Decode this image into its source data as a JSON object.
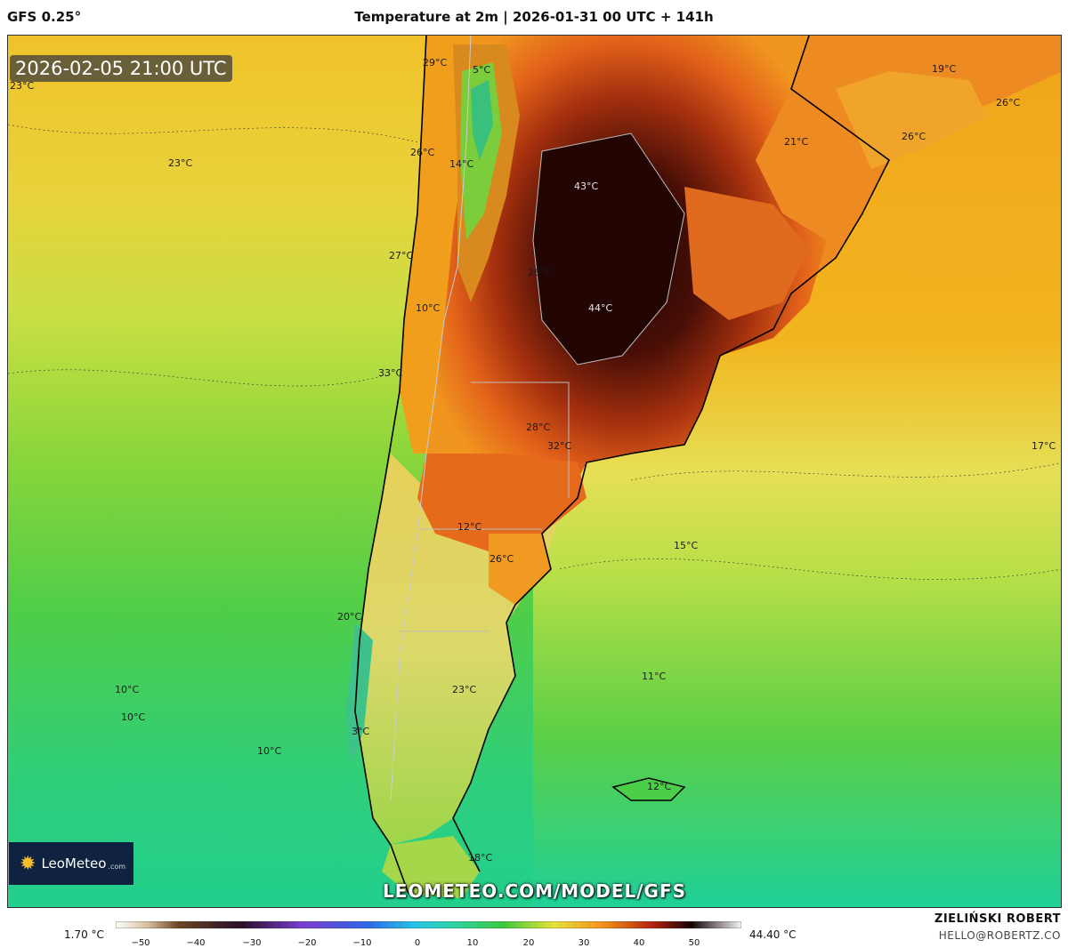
{
  "header": {
    "model": "GFS 0.25°",
    "title": "Temperature at 2m | 2026-01-31 00 UTC + 141h"
  },
  "map": {
    "valid_time": "2026-02-05 21:00 UTC",
    "watermark": "LEOMETEO.COM/MODEL/GFS",
    "logo": {
      "name": "LeoMeteo",
      "suffix": ".com"
    },
    "temperature_labels": [
      {
        "text": "23°C"
      },
      {
        "text": "29°C"
      },
      {
        "text": "5°C"
      },
      {
        "text": "23°C"
      },
      {
        "text": "26°C"
      },
      {
        "text": "14°C"
      },
      {
        "text": "43°C"
      },
      {
        "text": "21°C"
      },
      {
        "text": "26°C"
      },
      {
        "text": "26°C"
      },
      {
        "text": "19°C"
      },
      {
        "text": "27°C"
      },
      {
        "text": "26°C"
      },
      {
        "text": "10°C"
      },
      {
        "text": "44°C"
      },
      {
        "text": "33°C"
      },
      {
        "text": "28°C"
      },
      {
        "text": "32°C"
      },
      {
        "text": "17°C"
      },
      {
        "text": "12°C"
      },
      {
        "text": "26°C"
      },
      {
        "text": "15°C"
      },
      {
        "text": "20°C"
      },
      {
        "text": "11°C"
      },
      {
        "text": "10°C"
      },
      {
        "text": "10°C"
      },
      {
        "text": "23°C"
      },
      {
        "text": "3°C"
      },
      {
        "text": "10°C"
      },
      {
        "text": "12°C"
      },
      {
        "text": "18°C"
      }
    ]
  },
  "colorbar": {
    "min_label": "1.70 °C",
    "max_label": "44.40 °C",
    "ticks": [
      "−50",
      "−40",
      "−30",
      "−20",
      "−10",
      "0",
      "10",
      "20",
      "30",
      "40",
      "50"
    ]
  },
  "credits": {
    "author": "ZIELIŃSKI ROBERT",
    "email": "HELLO@ROBERTZ.CO"
  },
  "colors": {
    "ocean_far": "#33d18a",
    "ocean_mid": "#5fd24a",
    "ocean_warm": "#b4dd3a",
    "land_hot": "#e86a1c",
    "land_very_hot": "#3a0c06",
    "land_warm": "#f0a51c",
    "coast": "#000000",
    "border": "#bbbbbb"
  }
}
